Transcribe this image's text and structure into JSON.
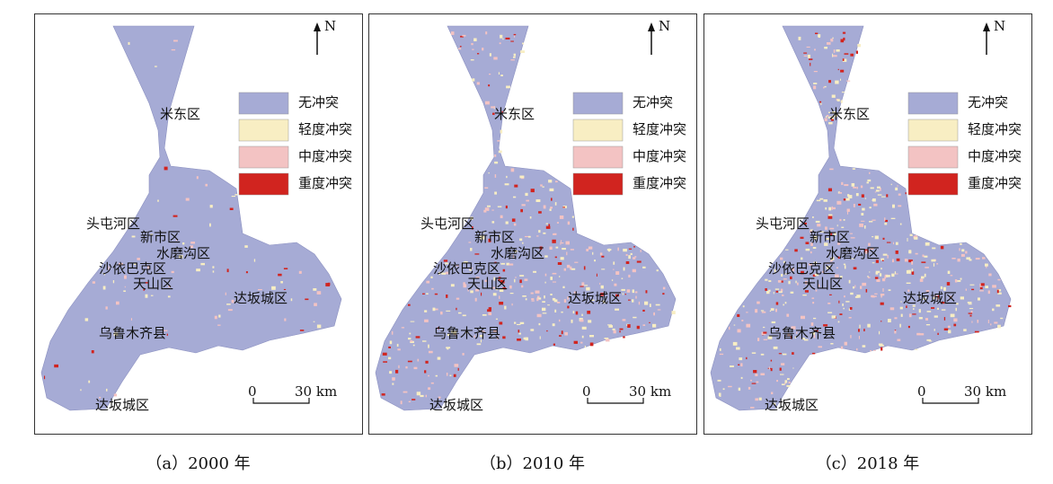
{
  "legend": [
    "无冲突",
    "轻度冲突",
    "中度冲突",
    "重度冲突"
  ],
  "legend_colors": [
    "#a6abd5",
    "#f8eec3",
    "#f3c3c3",
    "#d1241f"
  ],
  "districts": [
    "米东区",
    "头屯河区",
    "新市区",
    "水磨沟区",
    "沙依巴克区",
    "天山区",
    "达坂城区",
    "乌鲁木齐县",
    "达坂城区"
  ],
  "north": "N",
  "scale": {
    "zero": "0",
    "end": "30 km"
  },
  "panels": [
    {
      "caption": "（a）2000 年"
    },
    {
      "caption": "（b）2010 年"
    },
    {
      "caption": "（c）2018 年"
    }
  ]
}
